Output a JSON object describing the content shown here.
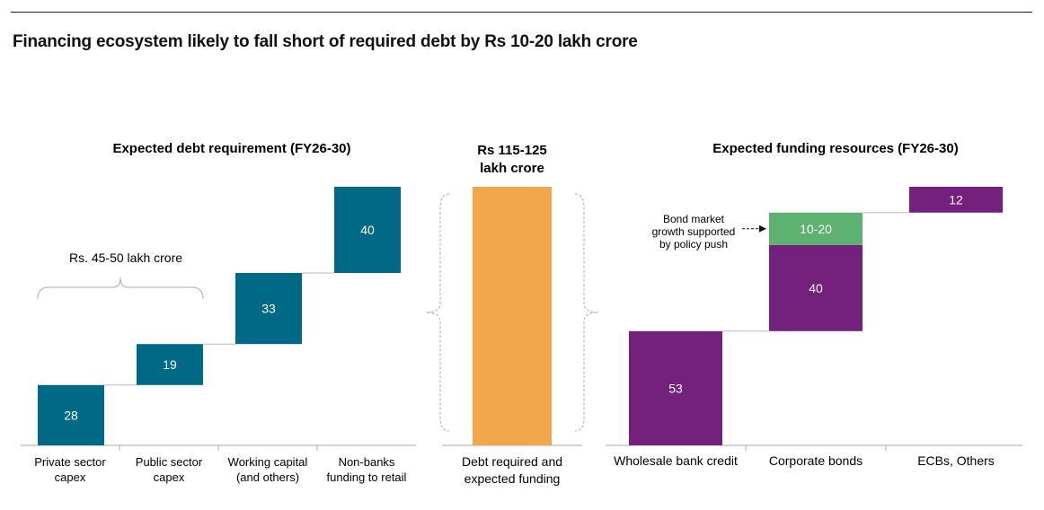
{
  "title": "Financing ecosystem likely to fall short of required debt by Rs 10-20 lakh crore",
  "colors": {
    "teal": "#006A86",
    "orange": "#F2A84A",
    "purple": "#74207D",
    "green": "#5DB271",
    "connector": "#BBBBBB",
    "axis": "#AAAAAA"
  },
  "chart_data": [
    {
      "type": "bar",
      "subtype": "waterfall",
      "title": "Expected debt requirement (FY26-30)",
      "categories": [
        "Private sector capex",
        "Public sector capex",
        "Working capital (and others)",
        "Non-banks funding to retail"
      ],
      "category_lines": [
        [
          "Private sector",
          "capex"
        ],
        [
          "Public sector",
          "capex"
        ],
        [
          "Working capital",
          "(and others)"
        ],
        [
          "Non-banks",
          "funding to retail"
        ]
      ],
      "values": [
        28,
        19,
        33,
        40
      ],
      "value_labels": [
        "28",
        "19",
        "33",
        "40"
      ],
      "annotation": "Rs. 45-50 lakh crore",
      "color": "#006A86"
    },
    {
      "type": "bar",
      "title_lines": [
        "Rs 115-125",
        "lakh crore"
      ],
      "categories": [
        "Debt required and expected funding"
      ],
      "category_lines": [
        [
          "Debt required and",
          "expected funding"
        ]
      ],
      "values": [
        120
      ],
      "color": "#F2A84A"
    },
    {
      "type": "bar",
      "subtype": "waterfall",
      "title": "Expected funding resources (FY26-30)",
      "categories": [
        "Wholesale bank credit",
        "Corporate bonds",
        "ECBs, Others"
      ],
      "segments": [
        {
          "category": "Wholesale bank credit",
          "value": 53,
          "label": "53",
          "color": "#74207D"
        },
        {
          "category": "Corporate bonds",
          "value": 40,
          "label": "40",
          "color": "#74207D"
        },
        {
          "category": "Corporate bonds",
          "value": 15,
          "label": "10-20",
          "color": "#5DB271"
        },
        {
          "category": "ECBs, Others",
          "value": 12,
          "label": "12",
          "color": "#74207D"
        }
      ],
      "annotation_lines": [
        "Bond market",
        "growth supported",
        "by policy push"
      ]
    }
  ]
}
